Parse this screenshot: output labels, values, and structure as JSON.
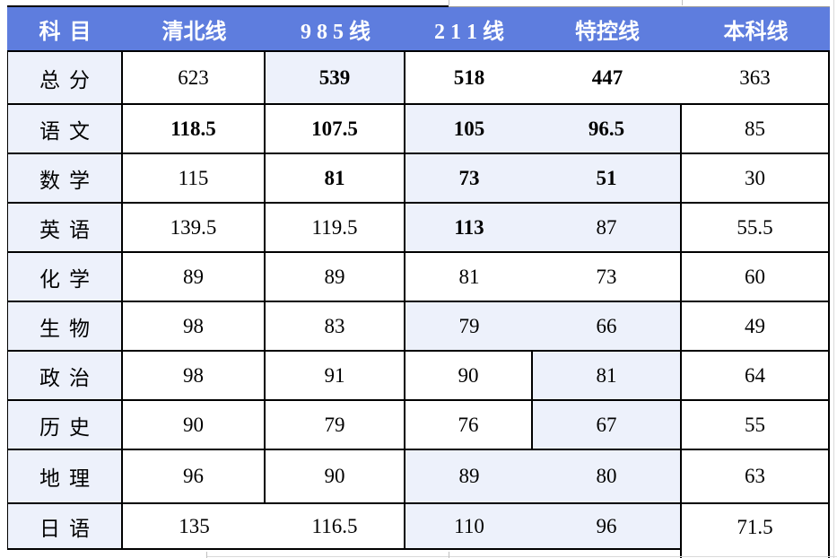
{
  "colors": {
    "header_bg": "#5e7dde",
    "header_text": "#ffffff",
    "lavender_cell": "#edf1fb",
    "white_cell": "#ffffff",
    "border_black": "#000000",
    "marker_green": "#12a112",
    "faint_gridline": "#d9d9d9"
  },
  "table": {
    "header": {
      "labels": [
        "科目",
        "清北线",
        "9 8 5 线",
        "2 1 1 线",
        "特控线",
        "本科线"
      ]
    },
    "rows": [
      {
        "label": "总分",
        "values": [
          "623",
          "539",
          "518",
          "447",
          "363"
        ],
        "bold": [
          0,
          1,
          1,
          1,
          0
        ],
        "bg": [
          "w",
          "l",
          "w",
          "w",
          "w"
        ],
        "hide_right": [
          2,
          3
        ],
        "markers": [],
        "hide_bottom": []
      },
      {
        "label": "语文",
        "values": [
          "118.5",
          "107.5",
          "105",
          "96.5",
          "85"
        ],
        "bold": [
          1,
          1,
          1,
          1,
          0
        ],
        "bg": [
          "w",
          "w",
          "l",
          "l",
          "w"
        ],
        "hide_right": [
          2
        ],
        "markers": [],
        "hide_bottom": []
      },
      {
        "label": "数学",
        "values": [
          "115",
          "81",
          "73",
          "51",
          "30"
        ],
        "bold": [
          0,
          1,
          1,
          1,
          0
        ],
        "bg": [
          "w",
          "w",
          "l",
          "l",
          "w"
        ],
        "hide_right": [
          2
        ],
        "markers": [],
        "hide_bottom": []
      },
      {
        "label": "英语",
        "values": [
          "139.5",
          "119.5",
          "113",
          "87",
          "55.5"
        ],
        "bold": [
          0,
          0,
          1,
          0,
          0
        ],
        "bg": [
          "w",
          "w",
          "l",
          "l",
          "w"
        ],
        "hide_right": [
          2
        ],
        "markers": [
          2
        ],
        "hide_bottom": []
      },
      {
        "label": "化学",
        "values": [
          "89",
          "89",
          "81",
          "73",
          "60"
        ],
        "bold": [
          0,
          0,
          0,
          0,
          0
        ],
        "bg": [
          "w",
          "w",
          "w",
          "w",
          "w"
        ],
        "hide_right": [
          2
        ],
        "markers": [],
        "hide_bottom": []
      },
      {
        "label": "生物",
        "values": [
          "98",
          "83",
          "79",
          "66",
          "49"
        ],
        "bold": [
          0,
          0,
          0,
          0,
          0
        ],
        "bg": [
          "w",
          "w",
          "l",
          "l",
          "w"
        ],
        "hide_right": [
          2
        ],
        "markers": [],
        "hide_bottom": []
      },
      {
        "label": "政治",
        "values": [
          "98",
          "91",
          "90",
          "81",
          "64"
        ],
        "bold": [
          0,
          0,
          0,
          0,
          0
        ],
        "bg": [
          "w",
          "w",
          "w",
          "l",
          "w"
        ],
        "hide_right": [],
        "markers": [],
        "hide_bottom": []
      },
      {
        "label": "历史",
        "values": [
          "90",
          "79",
          "76",
          "67",
          "55"
        ],
        "bold": [
          0,
          0,
          0,
          0,
          0
        ],
        "bg": [
          "w",
          "w",
          "w",
          "l",
          "w"
        ],
        "hide_right": [],
        "markers": [],
        "hide_bottom": []
      },
      {
        "label": "地理",
        "values": [
          "96",
          "90",
          "89",
          "80",
          "63"
        ],
        "bold": [
          0,
          0,
          0,
          0,
          0
        ],
        "bg": [
          "w",
          "w",
          "l",
          "l",
          "w"
        ],
        "hide_right": [
          2
        ],
        "markers": [],
        "hide_bottom": []
      },
      {
        "label": "日语",
        "values": [
          "135",
          "116.5",
          "110",
          "96",
          "71.5"
        ],
        "bold": [
          0,
          0,
          0,
          0,
          0
        ],
        "bg": [
          "w",
          "w",
          "l",
          "l",
          "w"
        ],
        "hide_right": [
          0,
          2
        ],
        "markers": [
          0,
          2
        ],
        "hide_bottom": [
          4
        ]
      }
    ]
  },
  "chart_data": {
    "type": "table",
    "title": "",
    "columns": [
      "科目",
      "清北线",
      "985线",
      "211线",
      "特控线",
      "本科线"
    ],
    "rows": [
      [
        "总分",
        623,
        539,
        518,
        447,
        363
      ],
      [
        "语文",
        118.5,
        107.5,
        105,
        96.5,
        85
      ],
      [
        "数学",
        115,
        81,
        73,
        51,
        30
      ],
      [
        "英语",
        139.5,
        119.5,
        113,
        87,
        55.5
      ],
      [
        "化学",
        89,
        89,
        81,
        73,
        60
      ],
      [
        "生物",
        98,
        83,
        79,
        66,
        49
      ],
      [
        "政治",
        98,
        91,
        90,
        81,
        64
      ],
      [
        "历史",
        90,
        79,
        76,
        67,
        55
      ],
      [
        "地理",
        96,
        90,
        89,
        80,
        63
      ],
      [
        "日语",
        135,
        116.5,
        110,
        96,
        71.5
      ]
    ],
    "layout_hints": {
      "header_fill": "#5e7dde",
      "alt_cell_fill": "#edf1fb",
      "comment_marker_cells": [
        [
          "英语",
          "211线"
        ],
        [
          "日语",
          "清北线"
        ],
        [
          "日语",
          "211线"
        ]
      ]
    }
  }
}
